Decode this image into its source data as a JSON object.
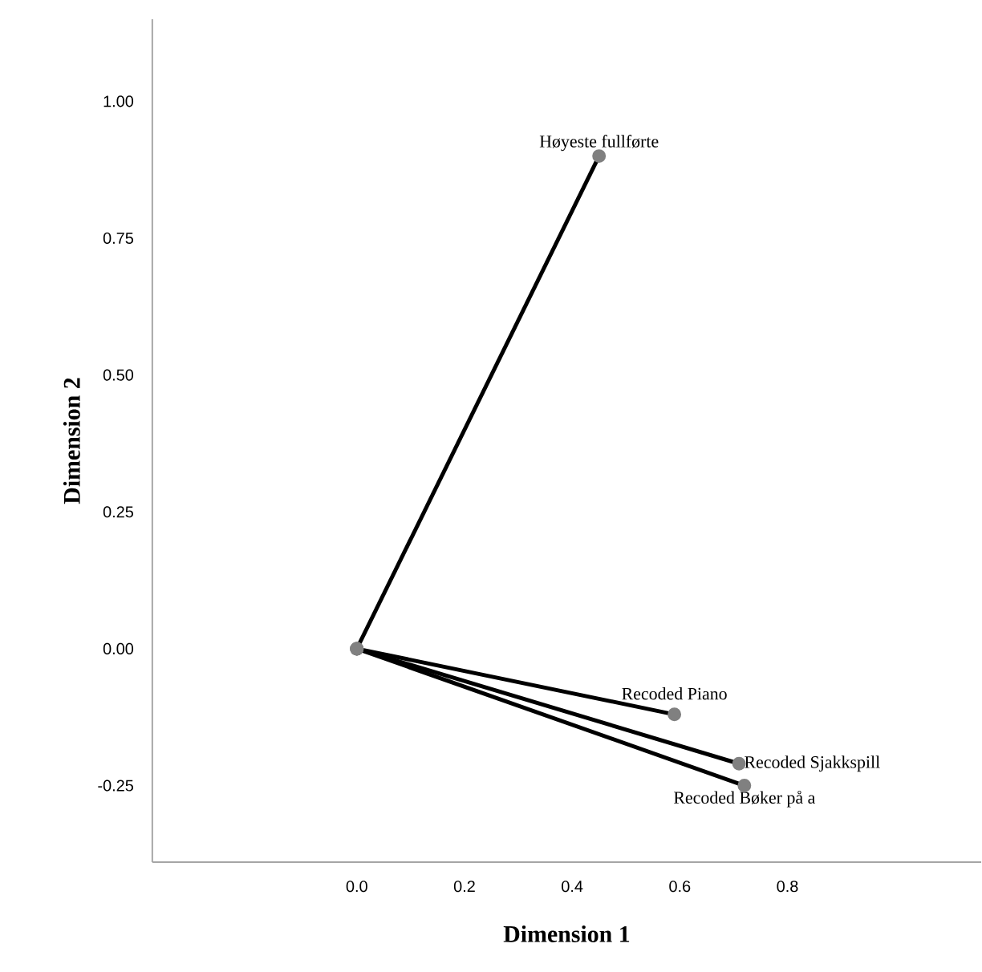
{
  "chart_data": {
    "type": "line",
    "xlabel": "Dimension 1",
    "ylabel": "Dimension 2",
    "series": [
      {
        "name": "Høyeste fullførte",
        "color": "#000000",
        "x": [
          0,
          0.45
        ],
        "values": [
          0,
          0.9
        ]
      },
      {
        "name": "Recoded Piano",
        "color": "#000000",
        "x": [
          0,
          0.59
        ],
        "values": [
          0,
          -0.12
        ]
      },
      {
        "name": "Recoded Sjakkspill",
        "color": "#000000",
        "x": [
          0,
          0.71
        ],
        "values": [
          0,
          -0.21
        ]
      },
      {
        "name": "Recoded Bøker på a",
        "color": "#000000",
        "x": [
          0,
          0.72
        ],
        "values": [
          0,
          -0.25
        ]
      }
    ],
    "xlim": [
      -0.38,
      1.16
    ],
    "ylim": [
      -0.39,
      1.15
    ],
    "xticks": [
      {
        "value": 0,
        "label": "0.0"
      },
      {
        "value": 0.2,
        "label": "0.2"
      },
      {
        "value": 0.4,
        "label": "0.4"
      },
      {
        "value": 0.6,
        "label": "0.6"
      },
      {
        "value": 0.8,
        "label": "0.8"
      }
    ],
    "yticks": [
      {
        "value": -0.25,
        "label": "-0.25"
      },
      {
        "value": 0,
        "label": "0.00"
      },
      {
        "value": 0.25,
        "label": "0.25"
      },
      {
        "value": 0.5,
        "label": "0.50"
      },
      {
        "value": 0.75,
        "label": "0.75"
      },
      {
        "value": 1.0,
        "label": "1.00"
      }
    ],
    "marker": "circle",
    "line_style": "solid"
  }
}
